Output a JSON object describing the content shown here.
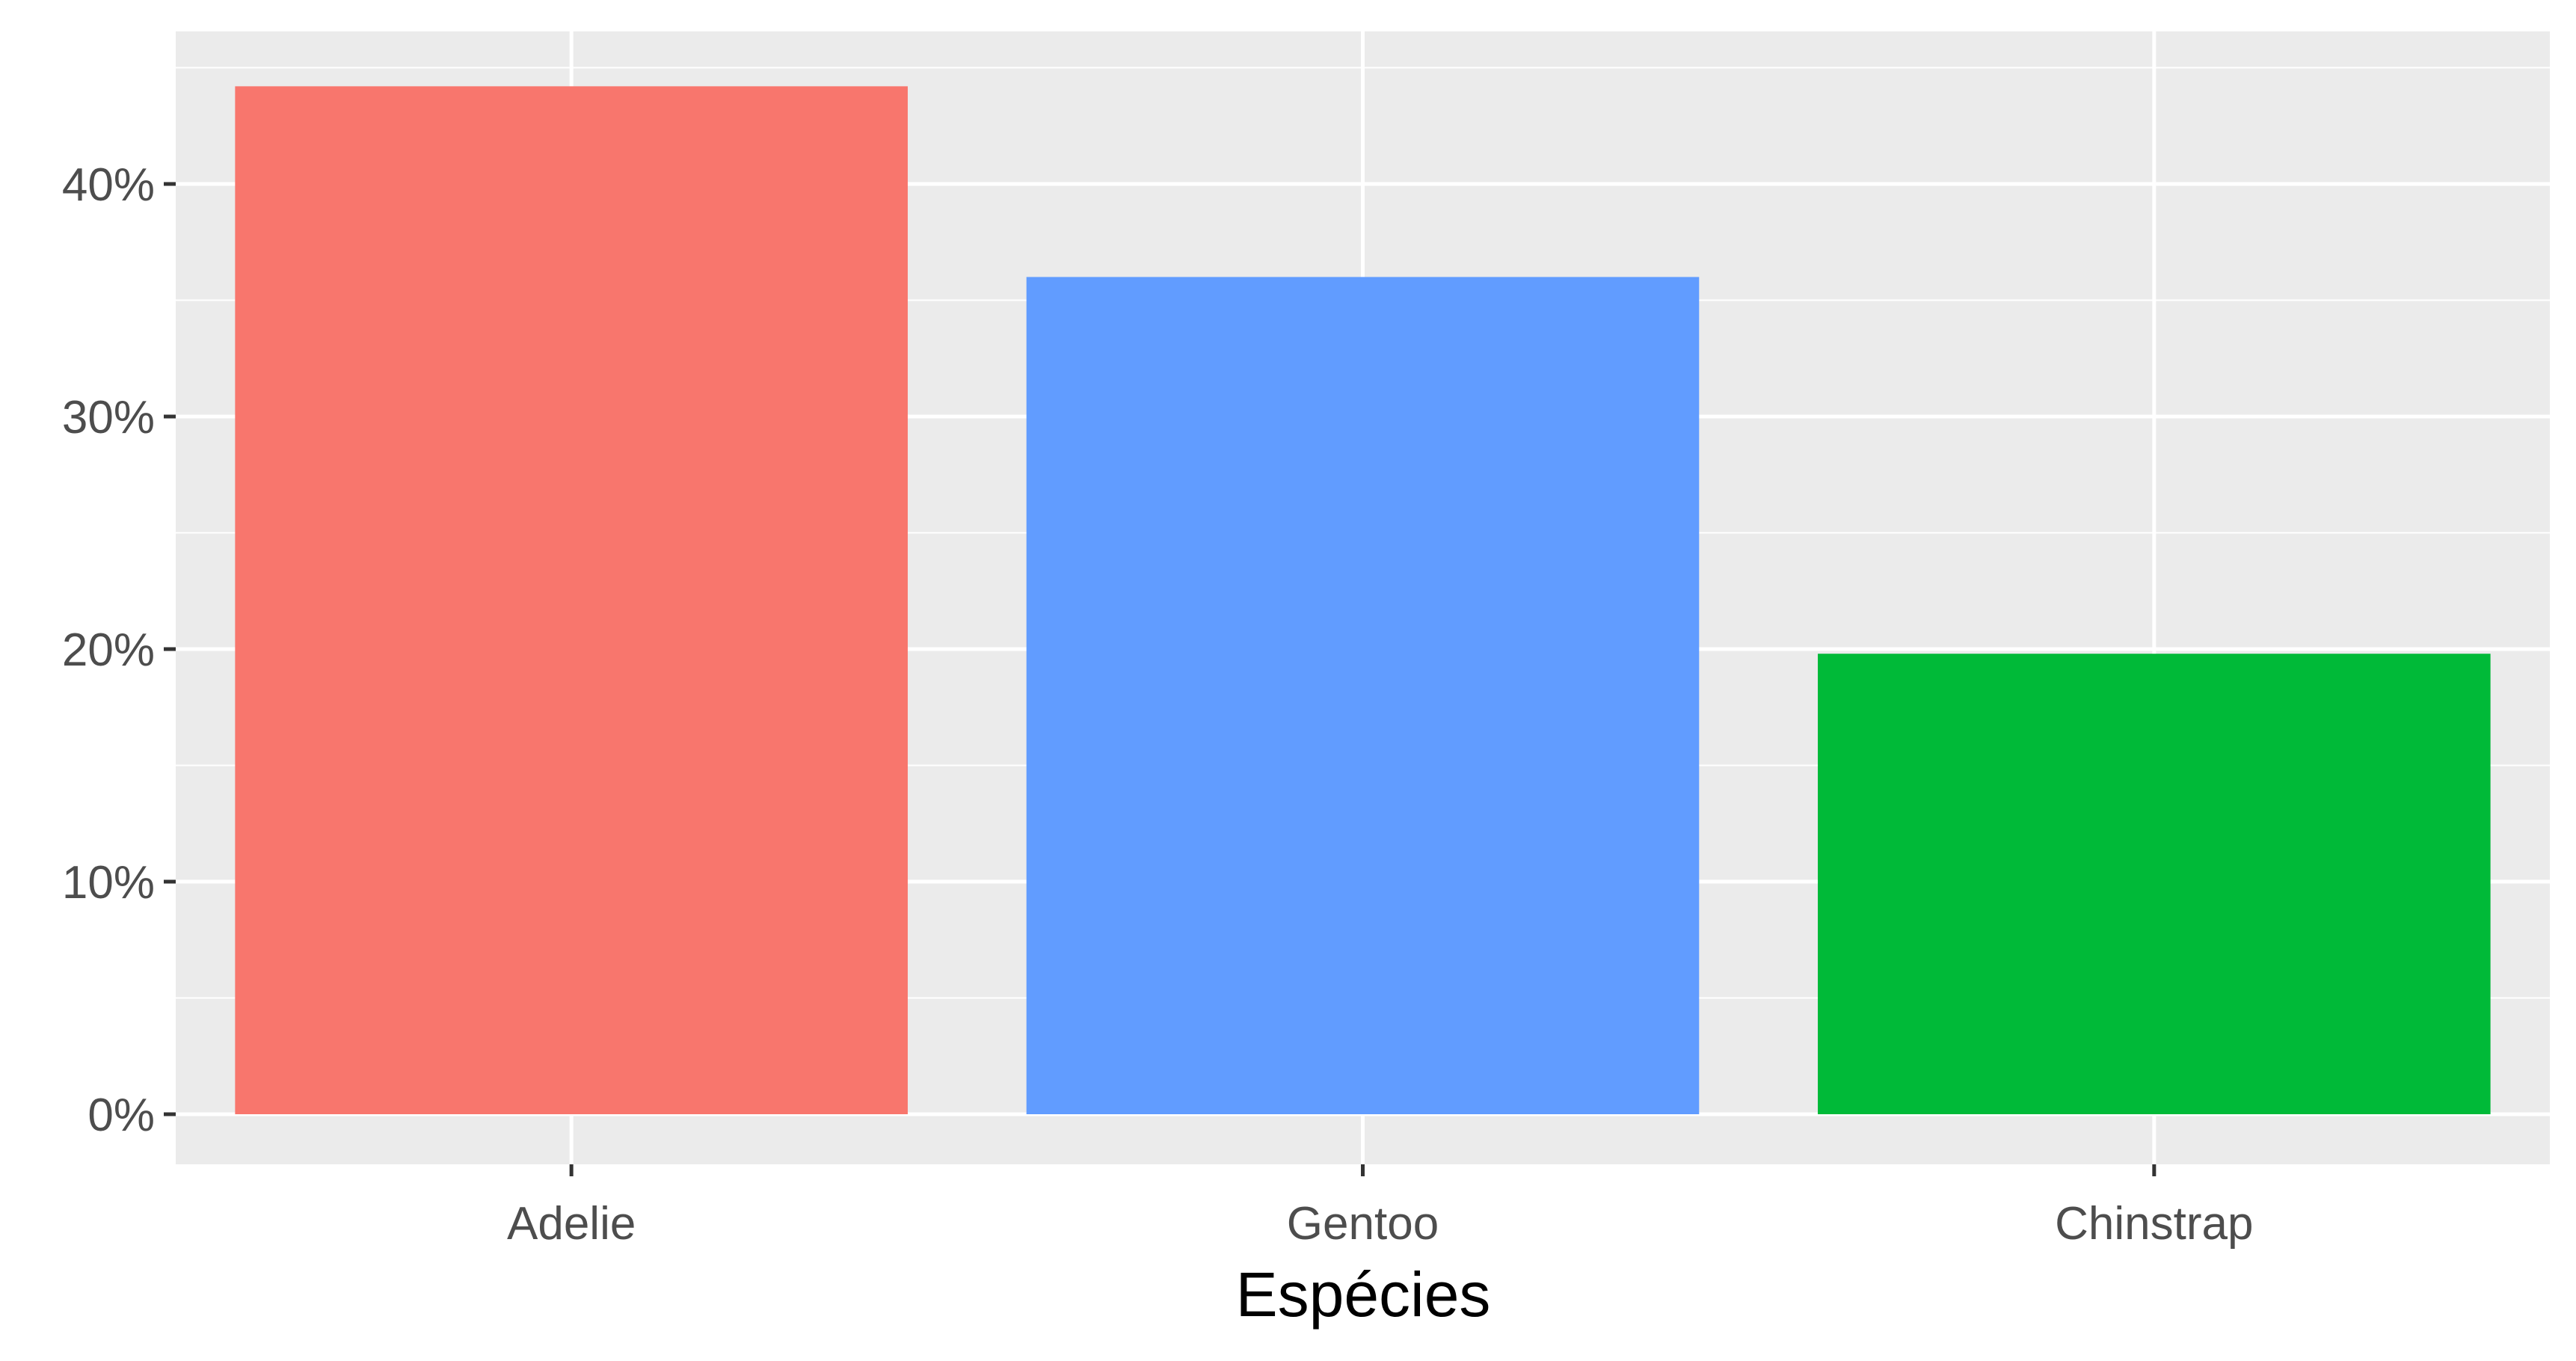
{
  "chart_data": {
    "type": "bar",
    "categories": [
      "Adelie",
      "Gentoo",
      "Chinstrap"
    ],
    "values": [
      44.2,
      36.0,
      19.8
    ],
    "value_unit": "percent",
    "xlabel": "Espécies",
    "ylabel": "",
    "ylim": [
      0,
      47
    ],
    "yticks": [
      0,
      10,
      20,
      30,
      40
    ],
    "ytick_labels": [
      "0%",
      "10%",
      "20%",
      "30%",
      "40%"
    ],
    "grid": true,
    "legend": "none",
    "colors": {
      "panel_background": "#EBEBEB",
      "grid": "#FFFFFF",
      "bars": [
        "#F8766D",
        "#619CFF",
        "#00BA38"
      ]
    }
  }
}
